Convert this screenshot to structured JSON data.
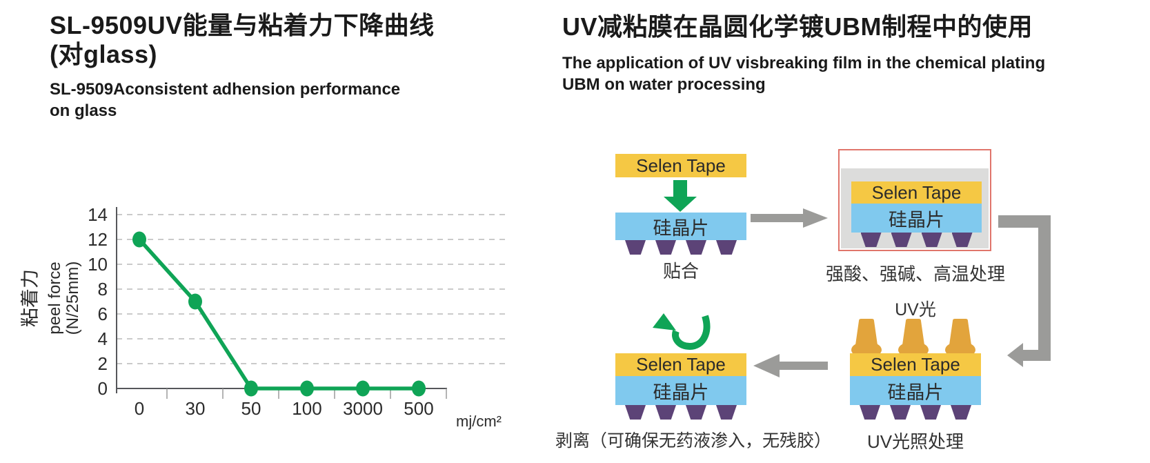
{
  "left_panel": {
    "title_line1": "SL-9509UV能量与粘着力下降曲线",
    "title_line2": "(对glass)",
    "subtitle_line1": "SL-9509Aconsistent adhension performance",
    "subtitle_line2": "on glass"
  },
  "chart_data": {
    "type": "line",
    "title": "SL-9509UV能量与粘着力下降曲线(对glass)",
    "categories": [
      "0",
      "30",
      "50",
      "100",
      "3000",
      "500"
    ],
    "values": [
      12,
      7,
      0,
      0,
      0,
      0
    ],
    "xlabel": "mj/cm²",
    "ylabel_cn": "粘着力",
    "ylabel_en": "peel force",
    "ylabel_unit": "(N/25mm)",
    "ylim": [
      0,
      14
    ],
    "ytick_step": 2,
    "grid": "horizontal-dashed",
    "legend": "none",
    "line_color": "#0fa456",
    "marker": "circle"
  },
  "right_panel": {
    "title": "UV减粘膜在晶圆化学镀UBM制程中的使用",
    "subtitle_line1": "The application of UV visbreaking film in the chemical plating",
    "subtitle_line2": "UBM on water processing",
    "steps": [
      {
        "tape_label": "Selen Tape",
        "wafer_label": "硅晶片",
        "caption": "贴合"
      },
      {
        "tape_label": "Selen Tape",
        "wafer_label": "硅晶片",
        "caption": "强酸、强碱、高温处理"
      },
      {
        "uv_label": "UV光",
        "tape_label": "Selen Tape",
        "wafer_label": "硅晶片",
        "caption": "UV光照处理"
      },
      {
        "tape_label": "Selen Tape",
        "wafer_label": "硅晶片",
        "caption": "剥离（可确保无药液渗入，无残胶）"
      }
    ]
  },
  "colors": {
    "tape_yellow": "#F5C844",
    "wafer_blue": "#80C9EE",
    "bump_purple": "#5C4377",
    "lamp_orange": "#E2A43C",
    "flow_arrow_gray": "#9B9B99",
    "accent_green": "#0FA456",
    "bath_fill_gray": "#DCDCDB",
    "bath_border_red": "#E0756B",
    "text_dark": "#231F20"
  }
}
